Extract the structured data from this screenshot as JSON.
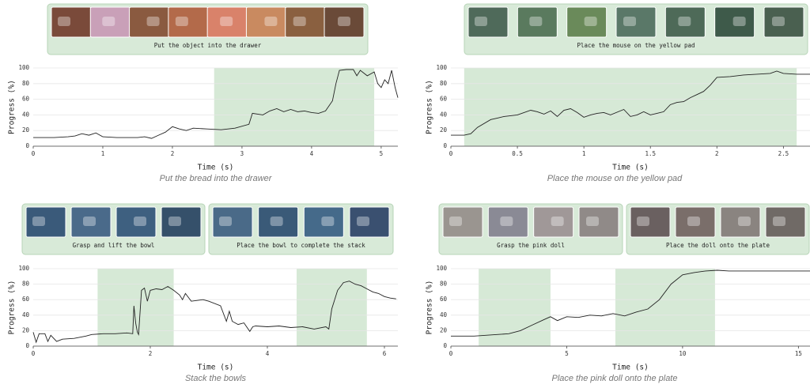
{
  "chart_data": [
    {
      "type": "line",
      "instructions": [
        "Put the object into the drawer"
      ],
      "caption": "Put the bread into the drawer",
      "xlabel": "Time (s)",
      "ylabel": "Progress (%)",
      "color": "#222222",
      "shade_color": "#d6e9d6",
      "grid": true,
      "shaded": [
        [
          2.6,
          4.9
        ]
      ],
      "xlim": [
        0,
        5.24
      ],
      "ylim": [
        0,
        100
      ],
      "xticks": [
        0,
        1,
        2,
        3,
        4,
        5
      ],
      "yticks": [
        0,
        20,
        40,
        60,
        80,
        100
      ],
      "x": [
        0,
        0.3,
        0.5,
        0.6,
        0.7,
        0.8,
        0.9,
        1.0,
        1.2,
        1.5,
        1.6,
        1.7,
        1.8,
        1.9,
        2.0,
        2.1,
        2.2,
        2.3,
        2.5,
        2.7,
        2.9,
        3.1,
        3.15,
        3.3,
        3.4,
        3.5,
        3.6,
        3.7,
        3.8,
        3.9,
        4.0,
        4.1,
        4.2,
        4.3,
        4.35,
        4.4,
        4.5,
        4.6,
        4.65,
        4.7,
        4.8,
        4.9,
        4.95,
        5.0,
        5.05,
        5.1,
        5.15,
        5.2,
        5.24
      ],
      "values": [
        11,
        11,
        12,
        13,
        16,
        14,
        17,
        12,
        11,
        11,
        12,
        10,
        14,
        18,
        25,
        22,
        20,
        23,
        22,
        21,
        23,
        28,
        42,
        40,
        45,
        48,
        44,
        47,
        44,
        45,
        43,
        42,
        45,
        58,
        80,
        97,
        98,
        98,
        90,
        97,
        90,
        95,
        80,
        75,
        85,
        80,
        97,
        75,
        62
      ]
    },
    {
      "type": "line",
      "instructions": [
        "Place the mouse on the yellow pad"
      ],
      "caption": "Place the mouse on the yellow pad",
      "xlabel": "Time (s)",
      "ylabel": "Progress (%)",
      "color": "#222222",
      "shade_color": "#d6e9d6",
      "grid": true,
      "shaded": [
        [
          0.1,
          2.6
        ]
      ],
      "xlim": [
        0,
        2.7
      ],
      "ylim": [
        0,
        100
      ],
      "xticks": [
        0,
        0.5,
        1,
        1.5,
        2,
        2.5
      ],
      "yticks": [
        0,
        20,
        40,
        60,
        80,
        100
      ],
      "x": [
        0,
        0.1,
        0.15,
        0.2,
        0.3,
        0.35,
        0.4,
        0.5,
        0.6,
        0.65,
        0.7,
        0.75,
        0.8,
        0.85,
        0.9,
        0.95,
        1.0,
        1.05,
        1.1,
        1.15,
        1.2,
        1.3,
        1.35,
        1.4,
        1.45,
        1.5,
        1.55,
        1.6,
        1.65,
        1.7,
        1.75,
        1.8,
        1.85,
        1.9,
        1.95,
        2.0,
        2.1,
        2.2,
        2.3,
        2.4,
        2.45,
        2.5,
        2.6,
        2.7
      ],
      "values": [
        14,
        14,
        16,
        24,
        34,
        36,
        38,
        40,
        46,
        44,
        41,
        45,
        38,
        46,
        48,
        43,
        37,
        40,
        42,
        43,
        40,
        47,
        38,
        40,
        44,
        40,
        42,
        44,
        53,
        56,
        57,
        62,
        66,
        70,
        78,
        88,
        89,
        91,
        92,
        93,
        96,
        93,
        92,
        92
      ]
    },
    {
      "type": "line",
      "instructions": [
        "Grasp and lift the bowl",
        "Place the bowl to complete the stack"
      ],
      "caption": "Stack the bowls",
      "xlabel": "Time (s)",
      "ylabel": "Progress (%)",
      "color": "#222222",
      "shade_color": "#d6e9d6",
      "grid": true,
      "shaded": [
        [
          1.1,
          2.4
        ],
        [
          4.5,
          5.7
        ]
      ],
      "xlim": [
        0,
        6.23
      ],
      "ylim": [
        0,
        100
      ],
      "xticks": [
        0,
        2,
        4,
        6
      ],
      "yticks": [
        0,
        20,
        40,
        60,
        80,
        100
      ],
      "x": [
        0,
        0.05,
        0.1,
        0.2,
        0.25,
        0.3,
        0.4,
        0.5,
        0.7,
        0.9,
        1.0,
        1.2,
        1.4,
        1.6,
        1.7,
        1.72,
        1.75,
        1.78,
        1.8,
        1.85,
        1.9,
        1.95,
        2.0,
        2.1,
        2.2,
        2.3,
        2.4,
        2.5,
        2.55,
        2.6,
        2.7,
        2.9,
        3.0,
        3.2,
        3.3,
        3.35,
        3.4,
        3.5,
        3.6,
        3.7,
        3.75,
        3.8,
        4.0,
        4.2,
        4.4,
        4.6,
        4.8,
        5.0,
        5.05,
        5.1,
        5.2,
        5.3,
        5.4,
        5.5,
        5.6,
        5.7,
        5.8,
        5.9,
        6.0,
        6.1,
        6.2
      ],
      "values": [
        18,
        5,
        16,
        16,
        6,
        14,
        6,
        9,
        10,
        13,
        15,
        16,
        16,
        17,
        16,
        52,
        30,
        18,
        15,
        72,
        75,
        58,
        72,
        74,
        73,
        77,
        72,
        66,
        60,
        68,
        58,
        60,
        58,
        52,
        32,
        45,
        32,
        28,
        30,
        19,
        25,
        26,
        25,
        26,
        24,
        25,
        22,
        25,
        22,
        48,
        72,
        82,
        84,
        80,
        78,
        74,
        70,
        68,
        64,
        62,
        61
      ]
    },
    {
      "type": "line",
      "instructions": [
        "Grasp the pink doll",
        "Place the doll onto the plate"
      ],
      "caption": "Place the pink doll onto the plate",
      "xlabel": "Time (s)",
      "ylabel": "Progress (%)",
      "color": "#222222",
      "shade_color": "#d6e9d6",
      "grid": true,
      "shaded": [
        [
          1.2,
          4.3
        ],
        [
          7.1,
          11.4
        ]
      ],
      "xlim": [
        0,
        15.5
      ],
      "ylim": [
        0,
        100
      ],
      "xticks": [
        0,
        5,
        10,
        15
      ],
      "yticks": [
        0,
        20,
        40,
        60,
        80,
        100
      ],
      "x": [
        0,
        1,
        2,
        2.5,
        3,
        3.5,
        4,
        4.3,
        4.6,
        5,
        5.5,
        6,
        6.5,
        7,
        7.5,
        8,
        8.5,
        9,
        9.5,
        10,
        10.5,
        11,
        11.5,
        12,
        13,
        14,
        15,
        15.5
      ],
      "values": [
        13,
        13,
        15,
        16,
        20,
        27,
        34,
        38,
        33,
        38,
        37,
        40,
        39,
        42,
        39,
        44,
        48,
        60,
        80,
        92,
        95,
        97,
        98,
        97,
        97,
        97,
        97,
        97
      ]
    }
  ]
}
